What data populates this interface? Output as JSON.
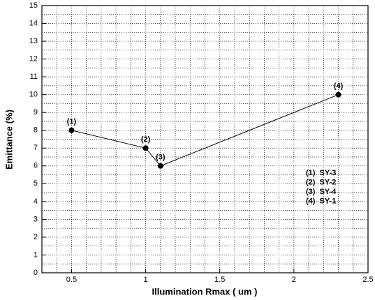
{
  "chart_data": {
    "type": "line",
    "x_label": "Illumination Rmax ( um )",
    "y_label": "Emittance (%)",
    "x": [
      0.5,
      1,
      1.1,
      2.3
    ],
    "series": [
      {
        "color": "#000000",
        "values": [
          8,
          7,
          6,
          10
        ],
        "point_labels": [
          "(1)",
          "(2)",
          "(3)",
          "(4)"
        ]
      }
    ],
    "legend": [
      "(1)  SY-3",
      "(2)  SY-2",
      "(3)  SY-4",
      "(4)  SY-1"
    ],
    "xlim": [
      0.3,
      2.5
    ],
    "xticks": [
      0.5,
      1,
      1.5,
      2,
      2.5
    ],
    "xminorticks": [
      0.4,
      0.6,
      0.7,
      0.8,
      0.9,
      1.1,
      1.2,
      1.3,
      1.4,
      1.6,
      1.7,
      1.8,
      1.9,
      2.1,
      2.2,
      2.3,
      2.4
    ],
    "ylim": [
      0,
      15
    ],
    "yticks": [
      0,
      1,
      2,
      3,
      4,
      5,
      6,
      7,
      8,
      9,
      10,
      11,
      12,
      13,
      14,
      15
    ],
    "yminorticks": [
      0.5,
      1.5,
      2.5,
      3.5,
      4.5,
      5.5,
      6.5,
      7.5,
      8.5,
      9.5,
      10.5,
      11.5,
      12.5,
      13.5,
      14.5
    ],
    "grid": true
  }
}
